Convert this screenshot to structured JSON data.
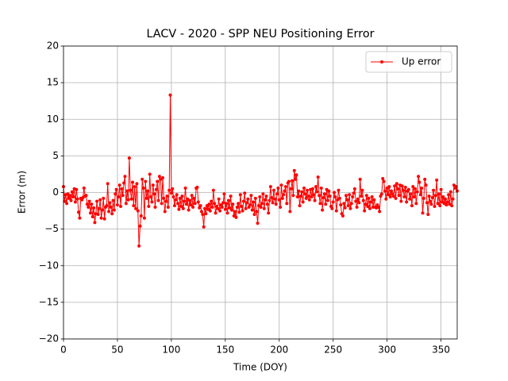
{
  "chart_data": {
    "type": "line",
    "title": "LACV - 2020 - SPP NEU Positioning Error",
    "x_label": "Time (DOY)",
    "y_label": "Error (m)",
    "xlim": [
      0,
      365
    ],
    "ylim": [
      -20,
      20
    ],
    "xticks": [
      0,
      50,
      100,
      150,
      200,
      250,
      300,
      350
    ],
    "yticks": [
      {
        "value": -20,
        "label": "−20"
      },
      {
        "value": -15,
        "label": "−15"
      },
      {
        "value": -10,
        "label": "−10"
      },
      {
        "value": -5,
        "label": "−5"
      },
      0,
      5,
      10,
      15,
      20
    ],
    "grid": true,
    "legend": "upper right",
    "x": [
      0,
      1,
      2,
      3,
      4,
      5,
      6,
      7,
      8,
      9,
      10,
      11,
      12,
      13,
      14,
      15,
      16,
      17,
      18,
      19,
      20,
      21,
      22,
      23,
      24,
      25,
      26,
      27,
      28,
      29,
      30,
      31,
      32,
      33,
      34,
      35,
      36,
      37,
      38,
      39,
      40,
      41,
      42,
      43,
      44,
      45,
      46,
      47,
      48,
      49,
      50,
      51,
      52,
      53,
      54,
      55,
      56,
      57,
      58,
      59,
      60,
      61,
      62,
      63,
      64,
      65,
      66,
      67,
      68,
      69,
      70,
      71,
      72,
      73,
      74,
      75,
      76,
      77,
      78,
      79,
      80,
      81,
      82,
      83,
      84,
      85,
      86,
      87,
      88,
      89,
      90,
      91,
      92,
      93,
      94,
      95,
      96,
      97,
      98,
      99,
      100,
      101,
      102,
      103,
      104,
      105,
      106,
      107,
      108,
      109,
      110,
      111,
      112,
      113,
      114,
      115,
      116,
      117,
      118,
      119,
      120,
      121,
      122,
      123,
      124,
      125,
      126,
      127,
      128,
      129,
      130,
      131,
      132,
      133,
      134,
      135,
      136,
      137,
      138,
      139,
      140,
      141,
      142,
      143,
      144,
      145,
      146,
      147,
      148,
      149,
      150,
      151,
      152,
      153,
      154,
      155,
      156,
      157,
      158,
      159,
      160,
      161,
      162,
      163,
      164,
      165,
      166,
      167,
      168,
      169,
      170,
      171,
      172,
      173,
      174,
      175,
      176,
      177,
      178,
      179,
      180,
      181,
      182,
      183,
      184,
      185,
      186,
      187,
      188,
      189,
      190,
      191,
      192,
      193,
      194,
      195,
      196,
      197,
      198,
      199,
      200,
      201,
      202,
      203,
      204,
      205,
      206,
      207,
      208,
      209,
      210,
      211,
      212,
      213,
      214,
      215,
      216,
      217,
      218,
      219,
      220,
      221,
      222,
      223,
      224,
      225,
      226,
      227,
      228,
      229,
      230,
      231,
      232,
      233,
      234,
      235,
      236,
      237,
      238,
      239,
      240,
      241,
      242,
      243,
      244,
      245,
      246,
      247,
      248,
      249,
      250,
      251,
      252,
      253,
      254,
      255,
      256,
      257,
      258,
      259,
      260,
      261,
      262,
      263,
      264,
      265,
      266,
      267,
      268,
      269,
      270,
      271,
      272,
      273,
      274,
      275,
      276,
      277,
      278,
      279,
      280,
      281,
      282,
      283,
      284,
      285,
      286,
      287,
      288,
      289,
      290,
      291,
      292,
      293,
      294,
      295,
      296,
      297,
      298,
      299,
      300,
      301,
      302,
      303,
      304,
      305,
      306,
      307,
      308,
      309,
      310,
      311,
      312,
      313,
      314,
      315,
      316,
      317,
      318,
      319,
      320,
      321,
      322,
      323,
      324,
      325,
      326,
      327,
      328,
      329,
      330,
      331,
      332,
      333,
      334,
      335,
      336,
      337,
      338,
      339,
      340,
      341,
      342,
      343,
      344,
      345,
      346,
      347,
      348,
      349,
      350,
      351,
      352,
      353,
      354,
      355,
      356,
      357,
      358,
      359,
      360,
      361,
      362,
      363,
      364,
      365
    ],
    "series": [
      {
        "name": "Up error",
        "color": "#ff0000",
        "values": [
          0.8,
          -1.2,
          -0.3,
          -1.5,
          -0.2,
          -0.8,
          -0.4,
          -1.1,
          0.1,
          -0.6,
          0.5,
          -1.3,
          0.4,
          -0.9,
          -2.7,
          -3.5,
          -0.8,
          -1.0,
          -0.7,
          0.6,
          -0.5,
          -0.4,
          -1.6,
          -2.0,
          -1.2,
          -2.8,
          -1.6,
          -3.3,
          -2.1,
          -4.1,
          -2.9,
          -1.2,
          -3.0,
          -2.2,
          -1.0,
          -3.5,
          -2.4,
          -0.8,
          -3.6,
          -2.0,
          -1.8,
          1.2,
          -2.6,
          -1.4,
          -2.0,
          -2.9,
          -1.1,
          -2.4,
          -0.2,
          0.4,
          -1.7,
          -0.6,
          1.0,
          -1.9,
          0.5,
          -0.4,
          1.3,
          2.2,
          -1.5,
          0.2,
          -1.0,
          4.7,
          0.3,
          -0.9,
          1.4,
          -1.8,
          0.8,
          -2.2,
          1.2,
          -2.5,
          -7.3,
          -4.6,
          -3.2,
          1.8,
          0.6,
          -3.5,
          1.5,
          -0.8,
          0.2,
          -1.9,
          2.5,
          -0.6,
          -1.3,
          1.0,
          -0.2,
          -2.0,
          0.4,
          1.5,
          -1.1,
          2.2,
          1.8,
          -1.5,
          2.0,
          -0.8,
          -2.6,
          -1.2,
          -0.5,
          -2.0,
          0.3,
          13.3,
          -0.1,
          0.5,
          -0.6,
          -1.8,
          -1.0,
          -0.3,
          -1.5,
          -2.3,
          -0.8,
          -1.9,
          -0.5,
          -2.2,
          -1.2,
          0.6,
          -1.6,
          -0.9,
          -2.4,
          -1.1,
          -1.7,
          -0.4,
          -2.0,
          -0.8,
          -1.5,
          0.6,
          0.7,
          -1.3,
          -2.1,
          -1.8,
          -2.6,
          -3.0,
          -4.7,
          -2.2,
          -2.9,
          -1.8,
          -2.3,
          -1.6,
          -2.5,
          -1.2,
          -2.0,
          0.3,
          -1.5,
          -2.8,
          -1.9,
          -2.2,
          -0.9,
          -2.5,
          -1.7,
          -2.0,
          -1.4,
          -0.2,
          -2.3,
          -1.5,
          -2.8,
          -1.1,
          -2.1,
          -0.5,
          -2.4,
          -1.6,
          -3.2,
          -2.6,
          -3.4,
          -2.0,
          -1.5,
          -2.7,
          -0.3,
          -1.9,
          -2.5,
          -1.2,
          -0.1,
          -2.2,
          -1.4,
          -0.9,
          -2.0,
          -1.7,
          -0.4,
          -2.4,
          -1.3,
          -3.0,
          -0.8,
          -2.6,
          -4.2,
          -1.8,
          -0.6,
          -2.0,
          -1.5,
          -0.2,
          -2.2,
          -1.0,
          -0.5,
          -1.6,
          -2.8,
          -1.1,
          0.8,
          -0.7,
          -1.4,
          0.3,
          -0.9,
          -1.6,
          -0.2,
          0.6,
          -1.0,
          -2.0,
          1.0,
          -0.8,
          -0.3,
          0.2,
          0.8,
          -1.5,
          1.3,
          1.5,
          -2.6,
          0.5,
          1.6,
          -0.4,
          3.0,
          1.8,
          2.4,
          -0.6,
          0.2,
          -1.8,
          -0.5,
          0.1,
          -1.3,
          0.6,
          -0.2,
          -0.8,
          0.3,
          -0.5,
          -1.0,
          0.4,
          -0.6,
          0.5,
          -0.3,
          -1.1,
          0.8,
          0.1,
          2.1,
          -0.4,
          -1.5,
          0.6,
          -2.4,
          -0.7,
          -0.2,
          -1.6,
          0.4,
          -1.1,
          0.2,
          -0.5,
          -1.9,
          -2.2,
          -1.3,
          0.0,
          -0.6,
          -2.5,
          -1.0,
          0.3,
          -0.8,
          -1.7,
          -2.9,
          -3.2,
          -1.5,
          -2.1,
          -0.4,
          -1.0,
          -1.8,
          -0.3,
          -2.2,
          -1.5,
          -0.6,
          -0.1,
          0.5,
          -1.2,
          -2.0,
          -0.9,
          -1.4,
          1.8,
          -0.5,
          0.3,
          -1.1,
          -2.5,
          -1.6,
          -0.4,
          -1.9,
          -0.8,
          -2.2,
          -1.3,
          -0.6,
          -2.0,
          -1.0,
          -2.0,
          -2.1,
          -1.7,
          -2.0,
          -2.6,
          -0.5,
          -0.2,
          1.9,
          1.5,
          0.2,
          -0.9,
          0.6,
          -0.3,
          0.8,
          -0.6,
          0.2,
          -0.2,
          -0.5,
          0.9,
          -0.8,
          1.2,
          0.5,
          -0.4,
          1.0,
          -1.2,
          0.9,
          0.3,
          -0.6,
          0.7,
          -1.3,
          0.2,
          0.4,
          -0.9,
          -0.2,
          -1.8,
          0.8,
          -0.6,
          0.5,
          -1.5,
          0.1,
          2.2,
          1.4,
          -0.3,
          0.6,
          -2.8,
          -0.8,
          1.8,
          1.0,
          -1.4,
          -3.0,
          -0.5,
          -1.2,
          -1.6,
          -0.7,
          0.3,
          -1.9,
          -0.4,
          1.7,
          -1.5,
          -0.2,
          -1.8,
          0.4,
          -1.3,
          -0.6,
          -1.5,
          -0.9,
          -1.7,
          -1.3,
          -0.3,
          -1.6,
          0.1,
          -1.8,
          -0.9,
          1.0,
          0.6,
          0.8,
          0.2
        ]
      }
    ]
  }
}
